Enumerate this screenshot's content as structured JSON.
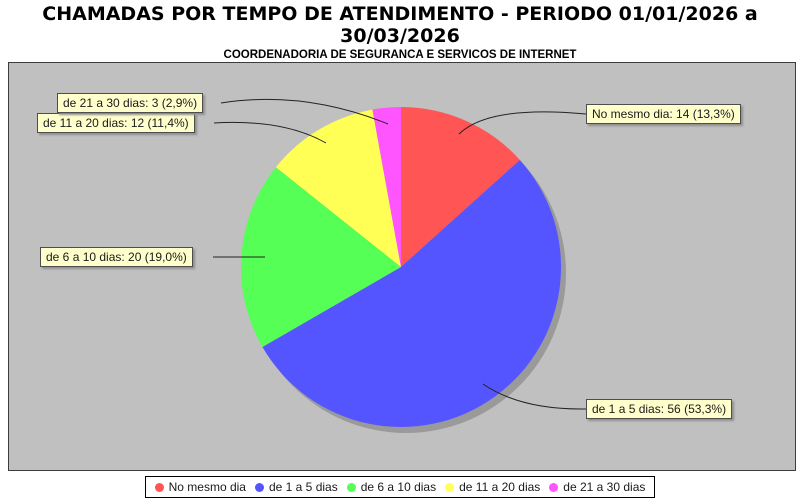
{
  "title": "CHAMADAS POR TEMPO DE ATENDIMENTO - PERIODO 01/01/2026 a\n30/03/2026",
  "subtitle": "COORDENADORIA DE SEGURANCA E SERVICOS DE INTERNET",
  "chart_data": {
    "type": "pie",
    "title": "CHAMADAS POR TEMPO DE ATENDIMENTO - PERIODO 01/01/2026 a 30/03/2026",
    "subtitle": "COORDENADORIA DE SEGURANCA E SERVICOS DE INTERNET",
    "categories": [
      "No mesmo dia",
      "de 1 a 5 dias",
      "de 6 a 10 dias",
      "de 11 a 20 dias",
      "de 21 a 30 dias"
    ],
    "values": [
      14,
      56,
      20,
      12,
      3
    ],
    "total": 105,
    "percent_labels": [
      "13,3%",
      "53,3%",
      "19,0%",
      "11,4%",
      "2,9%"
    ],
    "callout_labels": [
      "No mesmo dia: 14 (13,3%)",
      "de 1 a 5 dias: 56 (53,3%)",
      "de 6 a 10 dias: 20 (19,0%)",
      "de 11 a 20 dias: 12 (11,4%)",
      "de 21 a 30 dias: 3 (2,9%)"
    ],
    "colors": [
      "#FF5555",
      "#5555FF",
      "#55FF55",
      "#FFFF55",
      "#FF55FF"
    ],
    "start_angle_deg": 90,
    "direction": "clockwise",
    "legend_position": "bottom",
    "plot_background": "#C0C0C0",
    "callout_background": "#FFFFCC"
  }
}
